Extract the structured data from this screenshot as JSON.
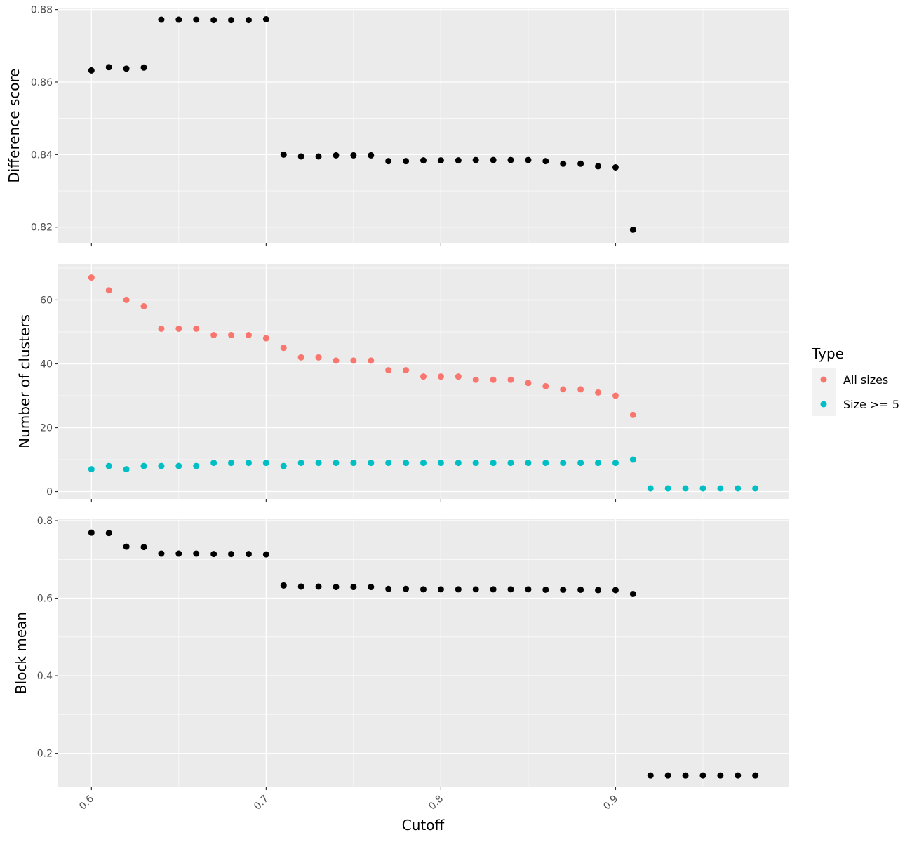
{
  "colors": {
    "panel_background": "#ebebeb",
    "grid": "#ffffff",
    "all_sizes": "#f8766d",
    "size_ge_5": "#00bfc4",
    "black_points": "#000000",
    "tick_text": "#4d4d4d",
    "tick_mark": "#333333"
  },
  "chart_data": {
    "type": "scatter",
    "xlabel": "Cutoff",
    "xlim": [
      0.581,
      0.999
    ],
    "x_ticks": [
      0.6,
      0.7,
      0.8,
      0.9
    ],
    "x_tick_labels": [
      "0.6",
      "0.7",
      "0.8",
      "0.9"
    ],
    "legend": {
      "title": "Type",
      "position": "right",
      "entries": [
        "All sizes",
        "Size >= 5"
      ]
    },
    "panels": [
      {
        "ylabel": "Difference score",
        "ylim": [
          0.8155,
          0.8805
        ],
        "y_ticks": [
          0.82,
          0.84,
          0.86,
          0.88
        ],
        "y_tick_labels": [
          "0.82",
          "0.84",
          "0.86",
          "0.88"
        ],
        "series": [
          {
            "color": "#000000",
            "x": [
              0.6,
              0.61,
              0.62,
              0.63,
              0.64,
              0.65,
              0.66,
              0.67,
              0.68,
              0.69,
              0.7,
              0.71,
              0.72,
              0.73,
              0.74,
              0.75,
              0.76,
              0.77,
              0.78,
              0.79,
              0.8,
              0.81,
              0.82,
              0.83,
              0.84,
              0.85,
              0.86,
              0.87,
              0.88,
              0.89,
              0.9,
              0.91
            ],
            "y": [
              0.8632,
              0.8641,
              0.8637,
              0.864,
              0.8772,
              0.8772,
              0.8772,
              0.8771,
              0.8771,
              0.8771,
              0.8773,
              0.84,
              0.8395,
              0.8395,
              0.8398,
              0.8398,
              0.8398,
              0.8382,
              0.8382,
              0.8384,
              0.8384,
              0.8384,
              0.8385,
              0.8385,
              0.8385,
              0.8385,
              0.8382,
              0.8375,
              0.8375,
              0.8368,
              0.8365,
              0.8193
            ]
          }
        ]
      },
      {
        "ylabel": "Number of clusters",
        "ylim": [
          -2.3,
          71.3
        ],
        "y_ticks": [
          0,
          20,
          40,
          60
        ],
        "y_tick_labels": [
          "0",
          "20",
          "40",
          "60"
        ],
        "series": [
          {
            "name": "All sizes",
            "color": "#f8766d",
            "x": [
              0.6,
              0.61,
              0.62,
              0.63,
              0.64,
              0.65,
              0.66,
              0.67,
              0.68,
              0.69,
              0.7,
              0.71,
              0.72,
              0.73,
              0.74,
              0.75,
              0.76,
              0.77,
              0.78,
              0.79,
              0.8,
              0.81,
              0.82,
              0.83,
              0.84,
              0.85,
              0.86,
              0.87,
              0.88,
              0.89,
              0.9,
              0.91
            ],
            "y": [
              67,
              63,
              60,
              58,
              51,
              51,
              51,
              49,
              49,
              49,
              48,
              45,
              42,
              42,
              41,
              41,
              41,
              38,
              38,
              36,
              36,
              36,
              35,
              35,
              35,
              34,
              33,
              32,
              32,
              31,
              30,
              24
            ]
          },
          {
            "name": "Size >= 5",
            "color": "#00bfc4",
            "x": [
              0.6,
              0.61,
              0.62,
              0.63,
              0.64,
              0.65,
              0.66,
              0.67,
              0.68,
              0.69,
              0.7,
              0.71,
              0.72,
              0.73,
              0.74,
              0.75,
              0.76,
              0.77,
              0.78,
              0.79,
              0.8,
              0.81,
              0.82,
              0.83,
              0.84,
              0.85,
              0.86,
              0.87,
              0.88,
              0.89,
              0.9,
              0.91,
              0.92,
              0.93,
              0.94,
              0.95,
              0.96,
              0.97,
              0.98
            ],
            "y": [
              7,
              8,
              7,
              8,
              8,
              8,
              8,
              9,
              9,
              9,
              9,
              8,
              9,
              9,
              9,
              9,
              9,
              9,
              9,
              9,
              9,
              9,
              9,
              9,
              9,
              9,
              9,
              9,
              9,
              9,
              9,
              10,
              1,
              1,
              1,
              1,
              1,
              1,
              1
            ]
          }
        ]
      },
      {
        "ylabel": "Block mean",
        "ylim": [
          0.1125,
          0.8055
        ],
        "y_ticks": [
          0.2,
          0.4,
          0.6,
          0.8
        ],
        "y_tick_labels": [
          "0.2",
          "0.4",
          "0.6",
          "0.8"
        ],
        "series": [
          {
            "color": "#000000",
            "x": [
              0.6,
              0.61,
              0.62,
              0.63,
              0.64,
              0.65,
              0.66,
              0.67,
              0.68,
              0.69,
              0.7,
              0.71,
              0.72,
              0.73,
              0.74,
              0.75,
              0.76,
              0.77,
              0.78,
              0.79,
              0.8,
              0.81,
              0.82,
              0.83,
              0.84,
              0.85,
              0.86,
              0.87,
              0.88,
              0.89,
              0.9,
              0.91,
              0.92,
              0.93,
              0.94,
              0.95,
              0.96,
              0.97,
              0.98
            ],
            "y": [
              0.769,
              0.768,
              0.733,
              0.732,
              0.715,
              0.715,
              0.715,
              0.714,
              0.714,
              0.714,
              0.713,
              0.633,
              0.63,
              0.63,
              0.629,
              0.629,
              0.629,
              0.624,
              0.624,
              0.623,
              0.623,
              0.623,
              0.623,
              0.623,
              0.623,
              0.623,
              0.622,
              0.622,
              0.622,
              0.621,
              0.621,
              0.611,
              0.143,
              0.143,
              0.143,
              0.143,
              0.143,
              0.143,
              0.143
            ]
          }
        ]
      }
    ]
  }
}
